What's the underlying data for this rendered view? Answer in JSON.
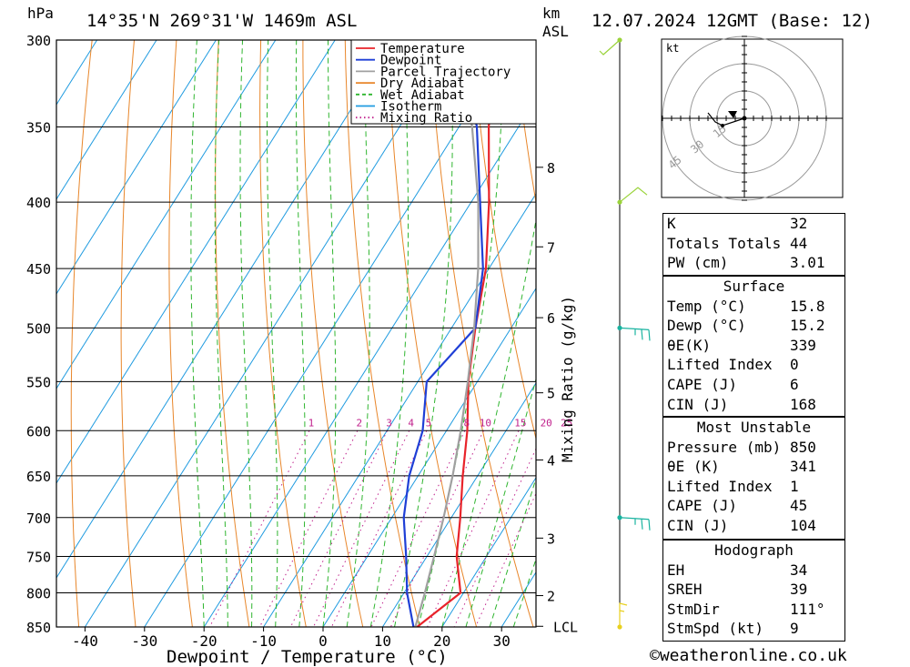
{
  "header": {
    "location": "14°35'N 269°31'W 1469m ASL",
    "datetime": "12.07.2024 12GMT (Base: 12)",
    "p_unit": "hPa",
    "km_unit": "km",
    "asl_unit": "ASL"
  },
  "chart_data": {
    "type": "skew-t",
    "xlabel": "Dewpoint / Temperature (°C)",
    "ylabel_right": "Mixing Ratio (g/kg)",
    "xlim": [
      -45,
      35
    ],
    "pressure_levels": [
      300,
      350,
      400,
      450,
      500,
      550,
      600,
      650,
      700,
      750,
      800,
      850
    ],
    "temp_ticks": [
      -40,
      -30,
      -20,
      -10,
      0,
      10,
      20,
      30
    ],
    "km_ticks": [
      {
        "km": "2",
        "p": 804
      },
      {
        "km": "3",
        "p": 726
      },
      {
        "km": "4",
        "p": 632
      },
      {
        "km": "5",
        "p": 561
      },
      {
        "km": "6",
        "p": 491
      },
      {
        "km": "7",
        "p": 433
      },
      {
        "km": "8",
        "p": 376
      }
    ],
    "lcl": {
      "label": "LCL",
      "p": 849
    },
    "mixing_ratio_labels": [
      "1",
      "2",
      "3",
      "4",
      "5",
      "8",
      "10",
      "15",
      "20",
      "25"
    ],
    "legend": [
      "Temperature",
      "Dewpoint",
      "Parcel Trajectory",
      "Dry Adiabat",
      "Wet Adiabat",
      "Isotherm",
      "Mixing Ratio"
    ],
    "series": [
      {
        "name": "Temperature",
        "color": "#e8232a",
        "points": [
          [
            850,
            15.8
          ],
          [
            800,
            19.5
          ],
          [
            750,
            15
          ],
          [
            700,
            11.5
          ],
          [
            650,
            7.5
          ],
          [
            600,
            3.5
          ],
          [
            550,
            -1.5
          ],
          [
            500,
            -6
          ],
          [
            450,
            -10.5
          ],
          [
            400,
            -17
          ],
          [
            350,
            -25
          ],
          [
            300,
            -33
          ]
        ]
      },
      {
        "name": "Dewpoint",
        "color": "#1f3fd6",
        "points": [
          [
            850,
            15.2
          ],
          [
            800,
            10.5
          ],
          [
            750,
            6.5
          ],
          [
            700,
            2
          ],
          [
            650,
            -1.5
          ],
          [
            600,
            -4
          ],
          [
            550,
            -8.5
          ],
          [
            500,
            -6
          ],
          [
            450,
            -11
          ],
          [
            400,
            -18.5
          ],
          [
            350,
            -27
          ],
          [
            300,
            -39
          ]
        ]
      },
      {
        "name": "Parcel Trajectory",
        "color": "#a0a0a0",
        "points": [
          [
            850,
            15.5
          ],
          [
            800,
            13.5
          ],
          [
            750,
            11.2
          ],
          [
            700,
            8.7
          ],
          [
            650,
            5.8
          ],
          [
            600,
            2.4
          ],
          [
            550,
            -1.6
          ],
          [
            500,
            -6.2
          ],
          [
            450,
            -11.8
          ],
          [
            400,
            -18.8
          ],
          [
            350,
            -27.8
          ],
          [
            300,
            -39.5
          ]
        ]
      }
    ],
    "wind_barbs": [
      {
        "p": 300,
        "dir": 225,
        "kt": 10
      },
      {
        "p": 400,
        "dir": 240,
        "kt": 10
      },
      {
        "p": 500,
        "dir": 100,
        "kt": 15
      },
      {
        "p": 700,
        "dir": 100,
        "kt": 15
      },
      {
        "p": 850,
        "dir": 20,
        "kt": 5
      }
    ],
    "hodograph": {
      "unit": "kt",
      "ring_labels": [
        "15",
        "30",
        "45"
      ],
      "points": [
        [
          0,
          0
        ],
        [
          -12,
          -4
        ],
        [
          -16,
          -2
        ],
        [
          -20,
          3
        ]
      ]
    }
  },
  "indices": {
    "general": [
      {
        "label": "K",
        "value": "32"
      },
      {
        "label": "Totals Totals",
        "value": "44"
      },
      {
        "label": "PW (cm)",
        "value": "3.01"
      }
    ],
    "surface": {
      "title": "Surface",
      "rows": [
        {
          "label": "Temp (°C)",
          "value": "15.8"
        },
        {
          "label": "Dewp (°C)",
          "value": "15.2"
        },
        {
          "label": "θE(K)",
          "value": "339"
        },
        {
          "label": "Lifted Index",
          "value": "0"
        },
        {
          "label": "CAPE (J)",
          "value": "6"
        },
        {
          "label": "CIN (J)",
          "value": "168"
        }
      ]
    },
    "most_unstable": {
      "title": "Most Unstable",
      "rows": [
        {
          "label": "Pressure (mb)",
          "value": "850"
        },
        {
          "label": "θE (K)",
          "value": "341"
        },
        {
          "label": "Lifted Index",
          "value": "1"
        },
        {
          "label": "CAPE (J)",
          "value": "45"
        },
        {
          "label": "CIN (J)",
          "value": "104"
        }
      ]
    },
    "hodograph": {
      "title": "Hodograph",
      "rows": [
        {
          "label": "EH",
          "value": "34"
        },
        {
          "label": "SREH",
          "value": "39"
        },
        {
          "label": "StmDir",
          "value": "111°"
        },
        {
          "label": "StmSpd (kt)",
          "value": "9"
        }
      ]
    }
  },
  "footer": "©weatheronline.co.uk"
}
